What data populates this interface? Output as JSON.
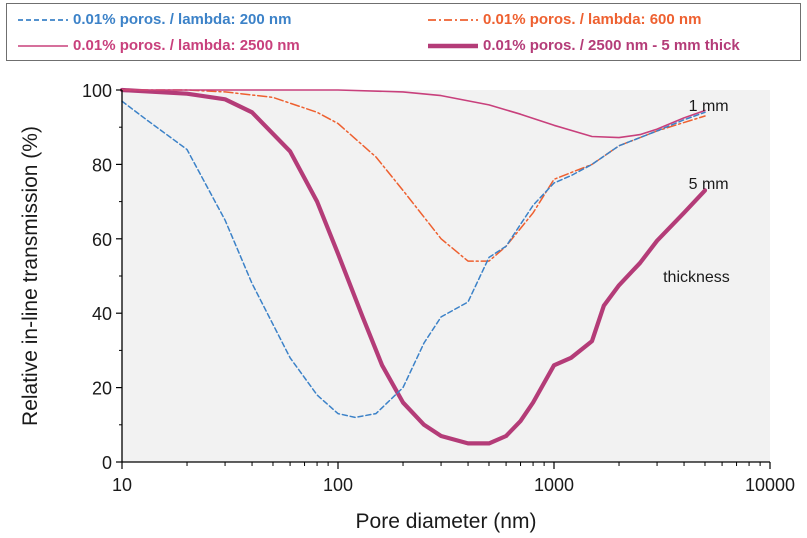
{
  "chart_data": {
    "type": "line",
    "xlabel": "Pore diameter (nm)",
    "ylabel": "Relative in-line transmission (%)",
    "xscale": "log",
    "xlim": [
      10,
      10000
    ],
    "ylim": [
      0,
      100
    ],
    "xticks": [
      "10",
      "100",
      "1000",
      "10000"
    ],
    "yticks": [
      "0",
      "20",
      "40",
      "60",
      "80",
      "100"
    ],
    "legend_position": "top",
    "series": [
      {
        "name": "0.01% poros. / lambda: 200 nm",
        "color": "#3c82c8",
        "style": "dashed",
        "x": [
          10,
          13,
          20,
          30,
          40,
          60,
          80,
          100,
          120,
          150,
          200,
          250,
          300,
          400,
          500,
          600,
          800,
          1000,
          1200,
          1500,
          2000,
          3000,
          4000,
          5000
        ],
        "y": [
          97,
          92,
          84,
          65,
          48,
          28,
          18,
          13,
          12,
          13,
          20,
          32,
          39,
          43,
          55,
          58,
          69,
          75,
          77,
          80,
          85,
          89,
          92,
          94
        ]
      },
      {
        "name": "0.01% poros. / lambda: 600 nm",
        "color": "#ee6030",
        "style": "dashdot",
        "x": [
          10,
          20,
          30,
          50,
          80,
          100,
          150,
          200,
          300,
          400,
          500,
          600,
          800,
          1000,
          1500,
          2000,
          3000,
          5000
        ],
        "y": [
          100,
          100,
          99.5,
          98,
          94,
          91,
          82,
          73,
          60,
          54,
          54,
          58,
          67,
          76,
          80,
          85,
          89,
          93
        ]
      },
      {
        "name": "0.01% poros. / lambda: 2500 nm",
        "color": "#c8407c",
        "style": "solid-thin",
        "x": [
          10,
          50,
          100,
          200,
          300,
          500,
          700,
          1000,
          1500,
          2000,
          2500,
          3000,
          4000,
          5000
        ],
        "y": [
          100,
          100,
          100,
          99.5,
          98.5,
          96,
          93.5,
          90.5,
          87.5,
          87.2,
          88,
          89.5,
          92.5,
          94.5
        ]
      },
      {
        "name": "0.01% poros. / 2500 nm - 5 mm thick",
        "color": "#b43c78",
        "style": "solid-thick",
        "x": [
          10,
          20,
          30,
          40,
          60,
          80,
          100,
          130,
          160,
          200,
          250,
          300,
          400,
          500,
          600,
          700,
          800,
          1000,
          1200,
          1500,
          1700,
          2000,
          2500,
          3000,
          4000,
          5000
        ],
        "y": [
          100,
          99,
          97.5,
          94,
          83.5,
          70,
          56,
          39,
          26,
          16,
          10,
          7,
          5,
          5,
          7,
          11,
          16,
          26,
          28,
          32.5,
          42,
          47.5,
          53.5,
          59.5,
          67,
          73
        ]
      }
    ],
    "annotations": [
      {
        "text": "1 mm",
        "x": 4200,
        "y": 96
      },
      {
        "text": "5 mm",
        "x": 4200,
        "y": 75
      },
      {
        "text": "thickness",
        "x": 3200,
        "y": 50
      }
    ]
  }
}
